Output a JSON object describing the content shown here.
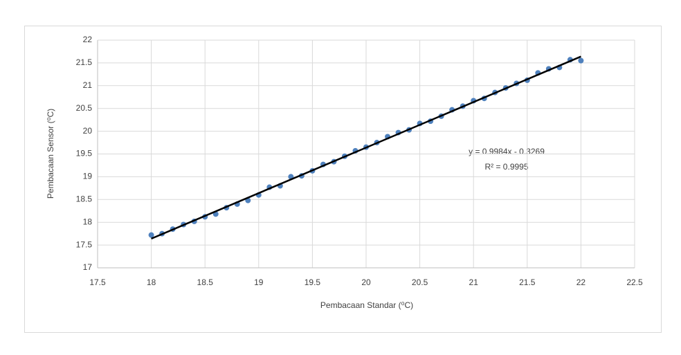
{
  "chart_data": {
    "type": "scatter",
    "x_label": "Pembacaan Standar (⁰C)",
    "y_label": "Pembacaan Sensor (⁰C)",
    "xlim": [
      17.5,
      22.5
    ],
    "xticks": [
      17.5,
      18,
      18.5,
      19,
      19.5,
      20,
      20.5,
      21,
      21.5,
      22,
      22.5
    ],
    "ylim": [
      17,
      22
    ],
    "yticks": [
      17,
      17.5,
      18,
      18.5,
      19,
      19.5,
      20,
      20.5,
      21,
      21.5,
      22
    ],
    "grid": true,
    "series": [
      {
        "color": "#4f81bd",
        "x": [
          18,
          18.1,
          18.2,
          18.3,
          18.4,
          18.5,
          18.6,
          18.7,
          18.8,
          18.9,
          19,
          19.1,
          19.2,
          19.3,
          19.4,
          19.5,
          19.6,
          19.7,
          19.8,
          19.9,
          20,
          20.1,
          20.2,
          20.3,
          20.4,
          20.5,
          20.6,
          20.7,
          20.8,
          20.9,
          21,
          21.1,
          21.2,
          21.3,
          21.4,
          21.5,
          21.6,
          21.7,
          21.8,
          21.9,
          22
        ],
        "values": [
          17.72,
          17.75,
          17.85,
          17.95,
          18.02,
          18.12,
          18.18,
          18.32,
          18.4,
          18.48,
          18.6,
          18.77,
          18.8,
          19.0,
          19.02,
          19.13,
          19.27,
          19.33,
          19.45,
          19.57,
          19.65,
          19.75,
          19.88,
          19.97,
          20.03,
          20.17,
          20.22,
          20.33,
          20.47,
          20.55,
          20.67,
          20.72,
          20.85,
          20.95,
          21.05,
          21.12,
          21.28,
          21.37,
          21.4,
          21.57,
          21.55
        ]
      }
    ],
    "trendline": {
      "color": "#000000",
      "x": [
        18,
        22
      ],
      "values": [
        17.64,
        21.64
      ],
      "equation": "y = 0.9984x - 0.3269",
      "r2": "R² = 0.9995"
    }
  }
}
